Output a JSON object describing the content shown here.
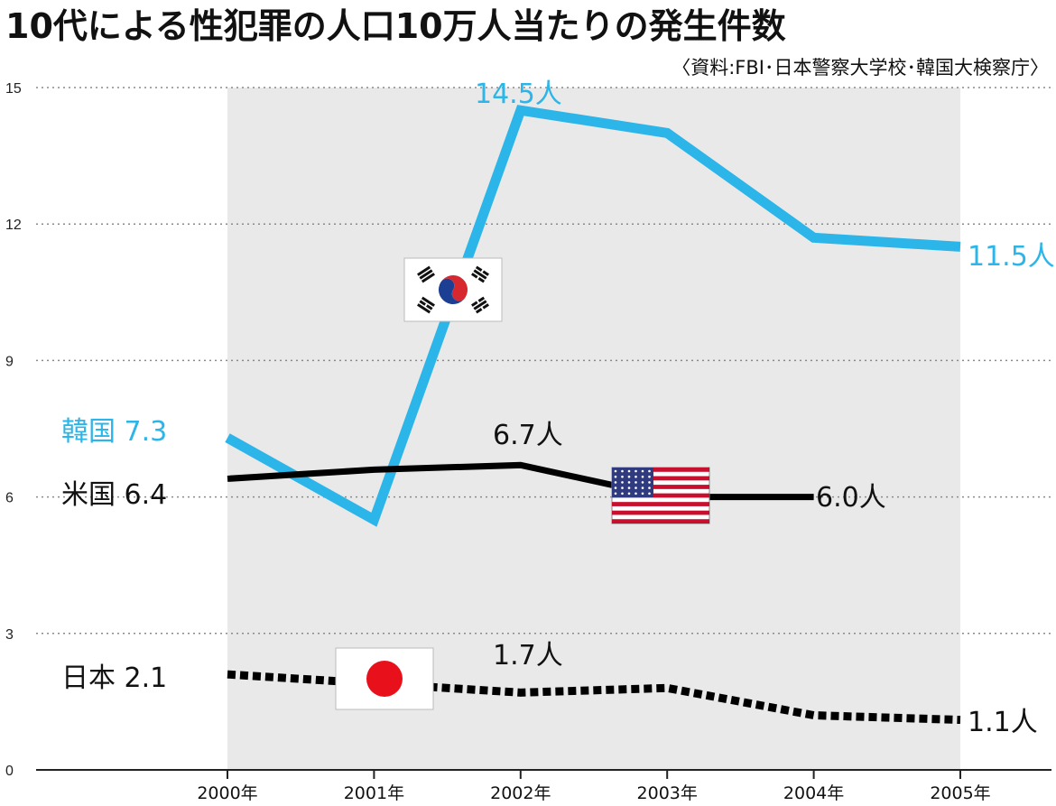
{
  "title": "10代による性犯罪の人口10万人当たりの発生件数",
  "source": "〈資料:FBI･日本警察大学校･韓国大検察庁〉",
  "colors": {
    "korea": "#2bb5e8",
    "usa": "#000000",
    "japan": "#000000",
    "area": "#e9e9e9",
    "grid": "#8a8a8a"
  },
  "chart_data": {
    "type": "line",
    "x": [
      "2000年",
      "2001年",
      "2002年",
      "2003年",
      "2004年",
      "2005年"
    ],
    "ylim": [
      0,
      15
    ],
    "yticks": [
      "0",
      "3",
      "6",
      "9",
      "12",
      "15"
    ],
    "ytick_values": [
      0,
      3,
      6,
      9,
      12,
      15
    ],
    "grid": true,
    "series": [
      {
        "name": "韓国",
        "values": [
          7.3,
          5.5,
          14.5,
          14.0,
          11.7,
          11.5
        ],
        "style": "solid",
        "color": "#2bb5e8"
      },
      {
        "name": "米国",
        "values": [
          6.4,
          6.6,
          6.7,
          6.0,
          6.0,
          null
        ],
        "style": "solid",
        "color": "#000000"
      },
      {
        "name": "日本",
        "values": [
          2.1,
          1.9,
          1.7,
          1.8,
          1.2,
          1.1
        ],
        "style": "dotted",
        "color": "#000000"
      }
    ],
    "annotations": [
      {
        "key": "korea_start",
        "text": "韓国 7.3"
      },
      {
        "key": "usa_start",
        "text": "米国 6.4"
      },
      {
        "key": "japan_start",
        "text": "日本 2.1"
      },
      {
        "key": "korea_peak",
        "text": "14.5人"
      },
      {
        "key": "korea_end",
        "text": "11.5人"
      },
      {
        "key": "usa_peak",
        "text": "6.7人"
      },
      {
        "key": "usa_end",
        "text": "6.0人"
      },
      {
        "key": "japan_mid",
        "text": "1.7人"
      },
      {
        "key": "japan_end",
        "text": "1.1人"
      }
    ]
  },
  "flags": [
    {
      "country": "韓国",
      "icon": "south-korea-flag-icon"
    },
    {
      "country": "米国",
      "icon": "usa-flag-icon"
    },
    {
      "country": "日本",
      "icon": "japan-flag-icon"
    }
  ]
}
